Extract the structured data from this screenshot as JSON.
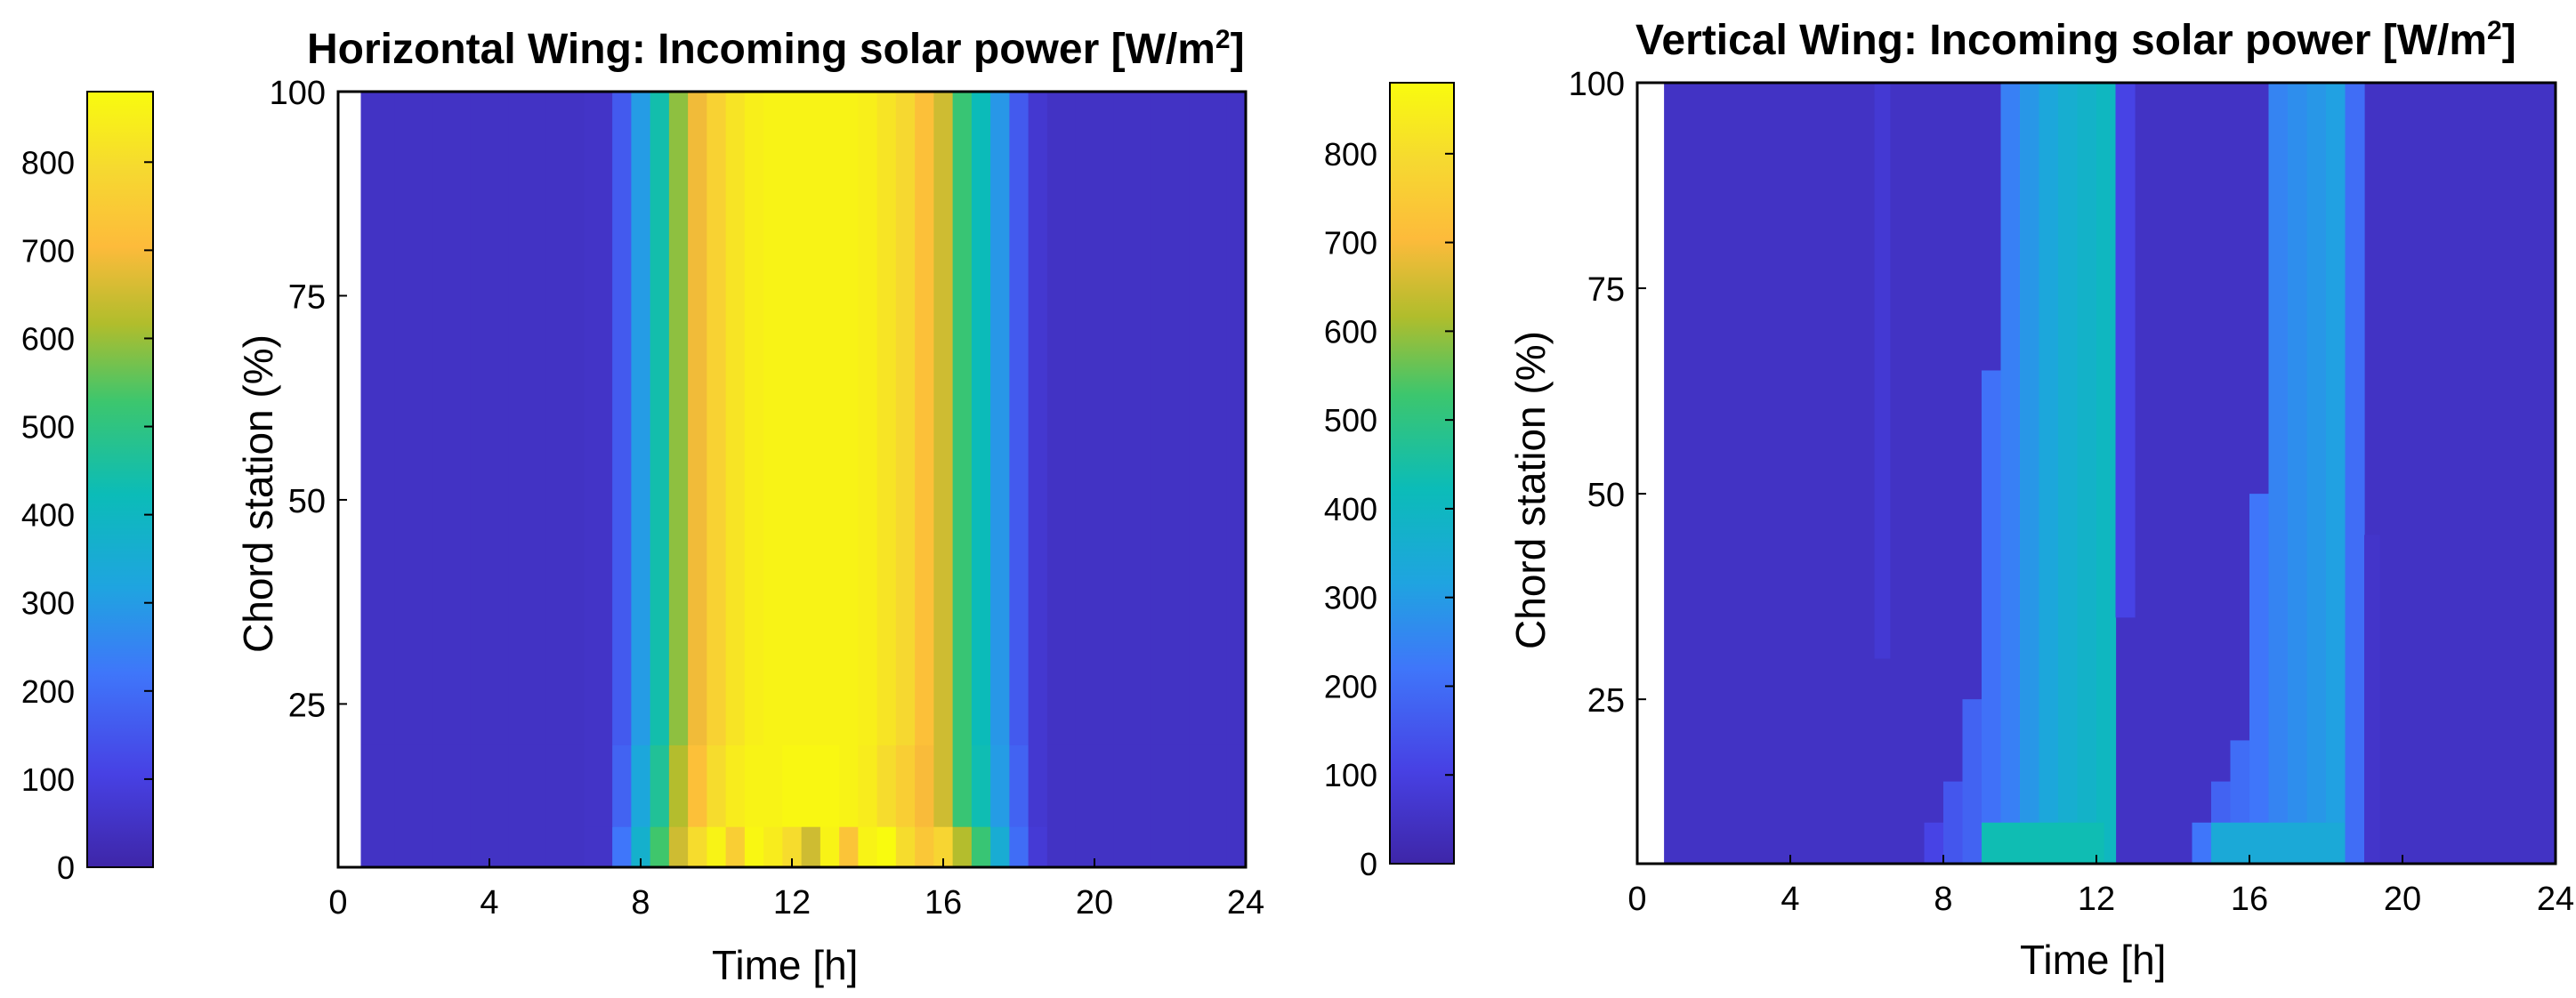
{
  "chart_data": [
    {
      "type": "heatmap",
      "title": "Horizontal Wing: Incoming solar power [W/m",
      "title_sup": "2",
      "title_end": "]",
      "xlabel": "Time [h]",
      "ylabel": "Chord station (%)",
      "xlim": [
        0,
        24
      ],
      "ylim": [
        5,
        100
      ],
      "xticks": [
        "0",
        "4",
        "8",
        "12",
        "16",
        "20",
        "24"
      ],
      "yticks": [
        "25",
        "50",
        "75",
        "100"
      ],
      "colorbar": {
        "min": 0,
        "max": 880,
        "ticks": [
          "0",
          "100",
          "200",
          "300",
          "400",
          "500",
          "600",
          "700",
          "800"
        ]
      },
      "hours": [
        1,
        2,
        3,
        4,
        5,
        6,
        7,
        7.5,
        8,
        8.5,
        9,
        9.5,
        10,
        10.5,
        11,
        11.5,
        12,
        12.5,
        13,
        13.5,
        14,
        14.5,
        15,
        15.5,
        16,
        16.5,
        17,
        17.5,
        18,
        18.5,
        19,
        20,
        21,
        22,
        23,
        24
      ],
      "chord_stations": [
        5,
        10,
        15,
        20,
        25,
        30,
        35,
        40,
        45,
        50,
        55,
        60,
        65,
        70,
        75,
        80,
        85,
        90,
        95,
        100
      ],
      "values_by_row": {
        "5-10": [
          50,
          50,
          50,
          50,
          50,
          50,
          55,
          220,
          370,
          530,
          650,
          800,
          860,
          760,
          870,
          840,
          800,
          650,
          860,
          730,
          860,
          880,
          800,
          740,
          780,
          620,
          520,
          350,
          200,
          80,
          50,
          50,
          50,
          50,
          50,
          50
        ],
        "10-20": [
          50,
          50,
          50,
          50,
          50,
          50,
          55,
          180,
          330,
          470,
          620,
          720,
          800,
          840,
          860,
          860,
          870,
          870,
          870,
          860,
          840,
          800,
          760,
          700,
          650,
          520,
          430,
          300,
          180,
          70,
          50,
          50,
          50,
          50,
          50,
          50
        ],
        "20-100": [
          50,
          50,
          50,
          50,
          50,
          50,
          55,
          160,
          300,
          440,
          590,
          690,
          770,
          820,
          850,
          860,
          860,
          860,
          860,
          860,
          850,
          820,
          790,
          720,
          650,
          520,
          420,
          290,
          160,
          70,
          50,
          50,
          50,
          50,
          50,
          50
        ]
      }
    },
    {
      "type": "heatmap",
      "title": "Vertical Wing: Incoming solar power [W/m",
      "title_sup": "2",
      "title_end": "]",
      "xlabel": "Time [h]",
      "ylabel": "Chord station (%)",
      "xlim": [
        0,
        24
      ],
      "ylim": [
        5,
        100
      ],
      "xticks": [
        "0",
        "4",
        "8",
        "12",
        "16",
        "20",
        "24"
      ],
      "yticks": [
        "25",
        "50",
        "75",
        "100"
      ],
      "colorbar": {
        "min": 0,
        "max": 880,
        "ticks": [
          "0",
          "100",
          "200",
          "300",
          "400",
          "500",
          "600",
          "700",
          "800"
        ]
      },
      "description_values": {
        "background": 50,
        "morning_peak_hours": [
          9.5,
          12.5
        ],
        "morning_peak_value": 380,
        "afternoon_peak_hours": [
          15.5,
          19
        ],
        "afternoon_peak_value": 320
      }
    }
  ]
}
